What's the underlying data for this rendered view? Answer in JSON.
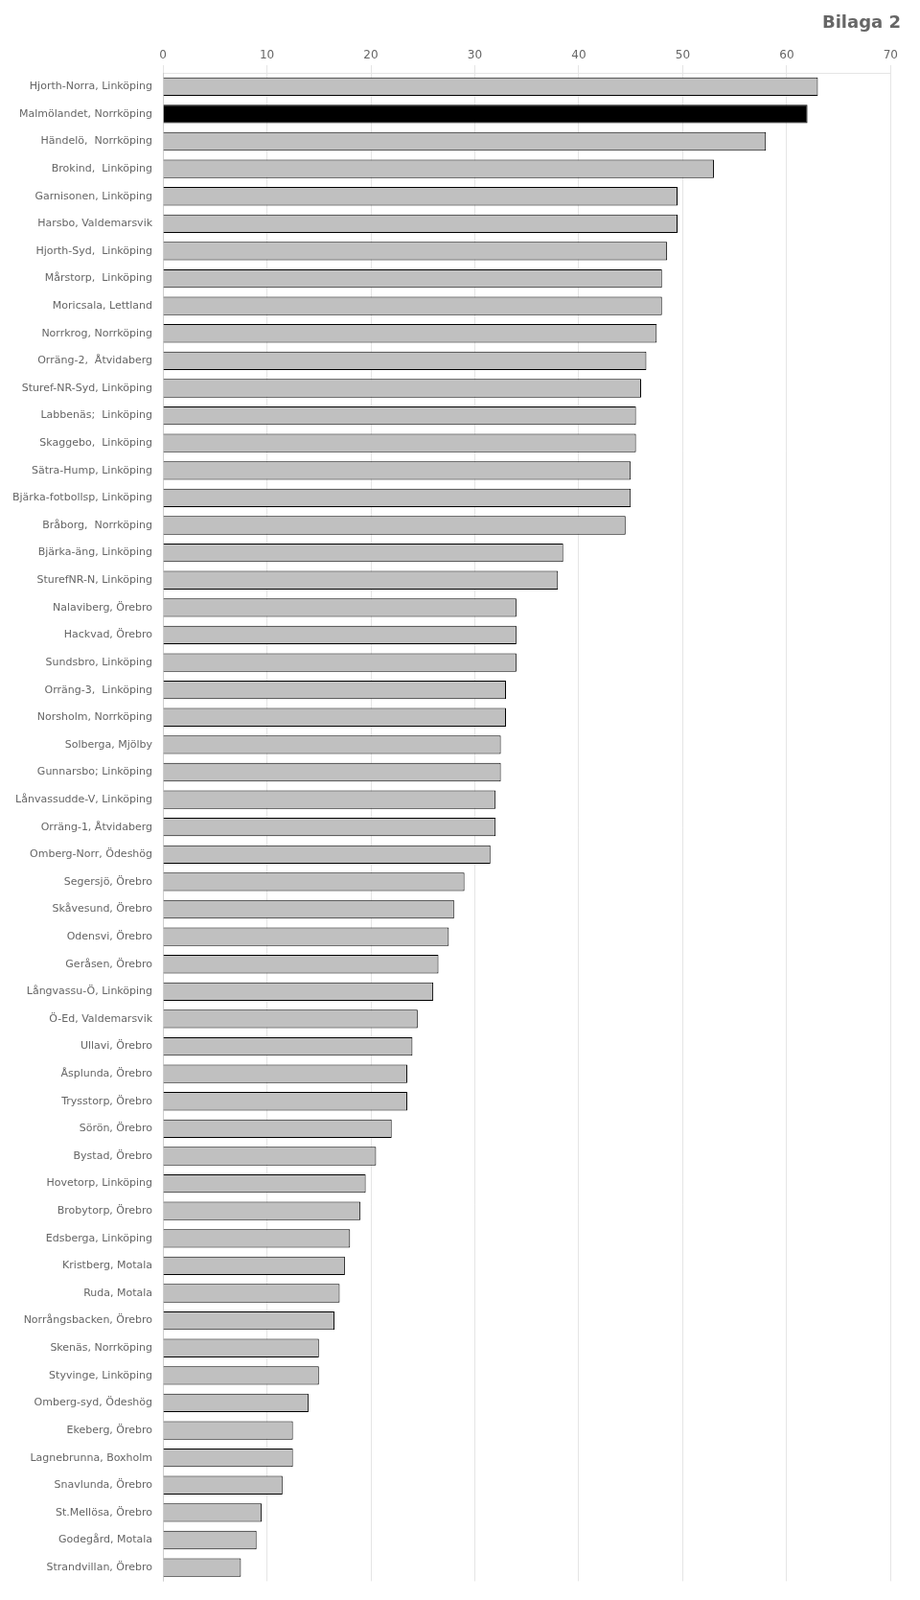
{
  "chart_data": {
    "type": "bar",
    "orientation": "horizontal",
    "title": "Bilaga 2",
    "categories": [
      "Hjorth-Norra, Linköping",
      "Malmölandet, Norrköping",
      "Händelö,  Norrköping",
      "Brokind,  Linköping",
      "Garnisonen, Linköping",
      "Harsbo, Valdemarsvik",
      "Hjorth-Syd,  Linköping",
      "Mårstorp,  Linköping",
      "Moricsala, Lettland",
      "Norrkrog, Norrköping",
      "Orräng-2,  Åtvidaberg",
      "Sturef-NR-Syd, Linköping",
      "Labbenäs;  Linköping",
      "Skaggebo,  Linköping",
      "Sätra-Hump, Linköping",
      "Bjärka-fotbollsp, Linköping",
      "Bråborg,  Norrköping",
      "Bjärka-äng, Linköping",
      "SturefNR-N, Linköping",
      "Nalaviberg, Örebro",
      "Hackvad, Örebro",
      "Sundsbro, Linköping",
      "Orräng-3,  Linköping",
      "Norsholm, Norrköping",
      "Solberga, Mjölby",
      "Gunnarsbo; Linköping",
      "Lånvassudde-V, Linköping",
      "Orräng-1, Åtvidaberg",
      "Omberg-Norr, Ödeshög",
      "Segersjö, Örebro",
      "Skåvesund, Örebro",
      "Odensvi, Örebro",
      "Geråsen, Örebro",
      "Långvassu-Ö, Linköping",
      "Ö-Ed, Valdemarsvik",
      "Ullavi, Örebro",
      "Åsplunda, Örebro",
      "Trysstorp, Örebro",
      "Sörön, Örebro",
      "Bystad, Örebro",
      "Hovetorp, Linköping",
      "Brobytorp, Örebro",
      "Edsberga, Linköping",
      "Kristberg, Motala",
      "Ruda, Motala",
      "Norrångsbacken, Örebro",
      "Skenäs, Norrköping",
      "Styvinge, Linköping",
      "Omberg-syd, Ödeshög",
      "Ekeberg, Örebro",
      "Lagnebrunna, Boxholm",
      "Snavlunda, Örebro",
      "St.Mellösa, Örebro",
      "Godegård, Motala",
      "Strandvillan, Örebro"
    ],
    "values": [
      63.0,
      62.0,
      58.0,
      53.0,
      49.5,
      49.5,
      48.5,
      48.0,
      48.0,
      47.5,
      46.5,
      46.0,
      45.5,
      45.5,
      45.0,
      45.0,
      44.5,
      38.5,
      38.0,
      34.0,
      34.0,
      34.0,
      33.0,
      33.0,
      32.5,
      32.5,
      32.0,
      32.0,
      31.5,
      29.0,
      28.0,
      27.5,
      26.5,
      26.0,
      24.5,
      24.0,
      23.5,
      23.5,
      22.0,
      20.5,
      19.5,
      19.0,
      18.0,
      17.5,
      17.0,
      16.5,
      15.0,
      15.0,
      14.0,
      12.5,
      12.5,
      11.5,
      9.5,
      9.0,
      7.5
    ],
    "colors": [
      "#c0c0c0",
      "#000000",
      "#c0c0c0",
      "#c0c0c0",
      "#c0c0c0",
      "#c0c0c0",
      "#c0c0c0",
      "#c0c0c0",
      "#c0c0c0",
      "#c0c0c0",
      "#c0c0c0",
      "#c0c0c0",
      "#c0c0c0",
      "#c0c0c0",
      "#c0c0c0",
      "#c0c0c0",
      "#c0c0c0",
      "#c0c0c0",
      "#c0c0c0",
      "#c0c0c0",
      "#c0c0c0",
      "#c0c0c0",
      "#c0c0c0",
      "#c0c0c0",
      "#c0c0c0",
      "#c0c0c0",
      "#c0c0c0",
      "#c0c0c0",
      "#c0c0c0",
      "#c0c0c0",
      "#c0c0c0",
      "#c0c0c0",
      "#c0c0c0",
      "#c0c0c0",
      "#c0c0c0",
      "#c0c0c0",
      "#c0c0c0",
      "#c0c0c0",
      "#c0c0c0",
      "#c0c0c0",
      "#c0c0c0",
      "#c0c0c0",
      "#c0c0c0",
      "#c0c0c0",
      "#c0c0c0",
      "#c0c0c0",
      "#c0c0c0",
      "#c0c0c0",
      "#c0c0c0",
      "#c0c0c0",
      "#c0c0c0",
      "#c0c0c0",
      "#c0c0c0",
      "#c0c0c0",
      "#c0c0c0"
    ],
    "xlim": [
      0,
      70
    ],
    "xticks": [
      0,
      10,
      20,
      30,
      40,
      50,
      60,
      70
    ],
    "grid": true
  }
}
